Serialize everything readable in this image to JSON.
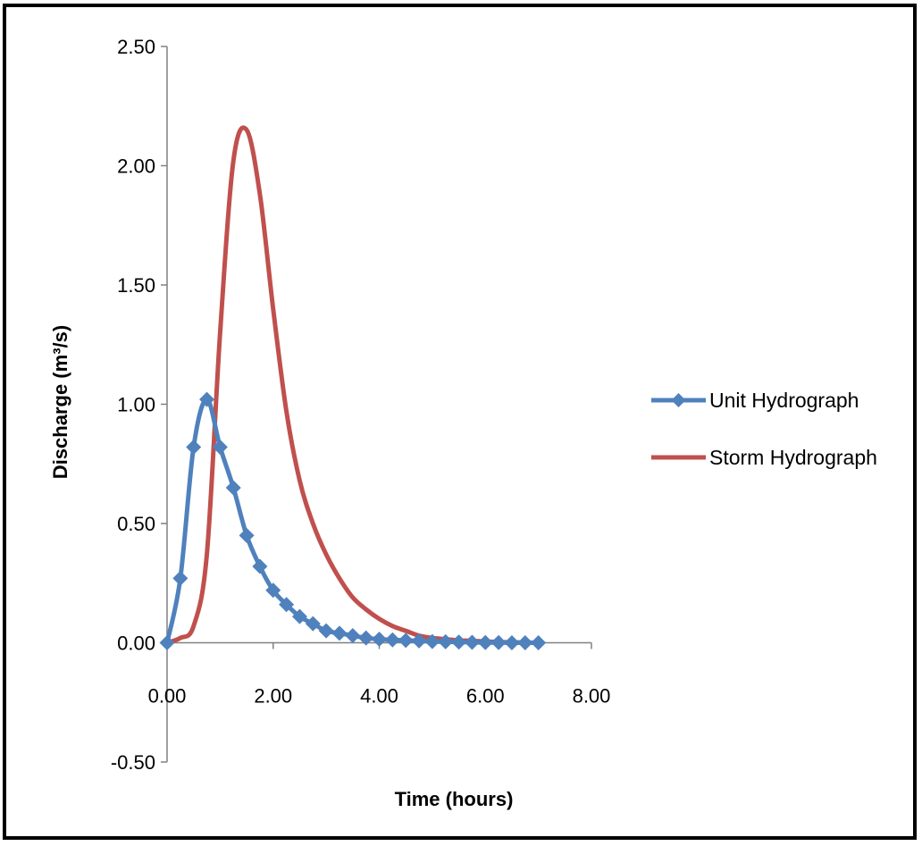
{
  "chart_data": {
    "type": "line",
    "title": "",
    "xlabel": "Time (hours)",
    "ylabel": "Discharge (m³/s)",
    "xlim": [
      0,
      8
    ],
    "ylim": [
      -0.5,
      2.5
    ],
    "x_ticks": [
      "0.00",
      "2.00",
      "4.00",
      "6.00",
      "8.00"
    ],
    "y_ticks": [
      "2.50",
      "2.00",
      "1.50",
      "1.00",
      "0.50",
      "0.00",
      "-0.50"
    ],
    "grid": false,
    "legend_position": "right",
    "series": [
      {
        "name": "Unit Hydrograph",
        "color": "#4F81BD",
        "marker": "diamond",
        "x": [
          0,
          0.25,
          0.5,
          0.75,
          1.0,
          1.25,
          1.5,
          1.75,
          2.0,
          2.25,
          2.5,
          2.75,
          3.0,
          3.25,
          3.5,
          3.75,
          4.0,
          4.25,
          4.5,
          4.75,
          5.0,
          5.25,
          5.5,
          5.75,
          6.0,
          6.25,
          6.5,
          6.75,
          7.0
        ],
        "y": [
          0.0,
          0.27,
          0.82,
          1.02,
          0.82,
          0.65,
          0.45,
          0.32,
          0.22,
          0.16,
          0.11,
          0.08,
          0.05,
          0.04,
          0.03,
          0.02,
          0.015,
          0.012,
          0.01,
          0.008,
          0.005,
          0.004,
          0.003,
          0.002,
          0.001,
          0.001,
          0.0,
          0.0,
          0.0
        ]
      },
      {
        "name": "Storm Hydrograph",
        "color": "#C0504D",
        "marker": "none",
        "x": [
          0.0,
          0.25,
          0.5,
          0.75,
          1.0,
          1.25,
          1.5,
          1.75,
          2.0,
          2.25,
          2.5,
          2.75,
          3.0,
          3.25,
          3.5,
          3.75,
          4.0,
          4.25,
          4.5,
          4.75,
          5.0,
          5.25,
          5.5,
          5.75,
          6.0,
          6.25,
          6.5,
          6.75,
          7.0
        ],
        "y": [
          0.0,
          0.02,
          0.07,
          0.37,
          1.3,
          2.02,
          2.15,
          1.88,
          1.4,
          0.97,
          0.68,
          0.5,
          0.37,
          0.27,
          0.19,
          0.14,
          0.1,
          0.07,
          0.05,
          0.03,
          0.02,
          0.015,
          0.01,
          0.008,
          0.005,
          0.003,
          0.002,
          0.001,
          0.0
        ]
      }
    ]
  }
}
